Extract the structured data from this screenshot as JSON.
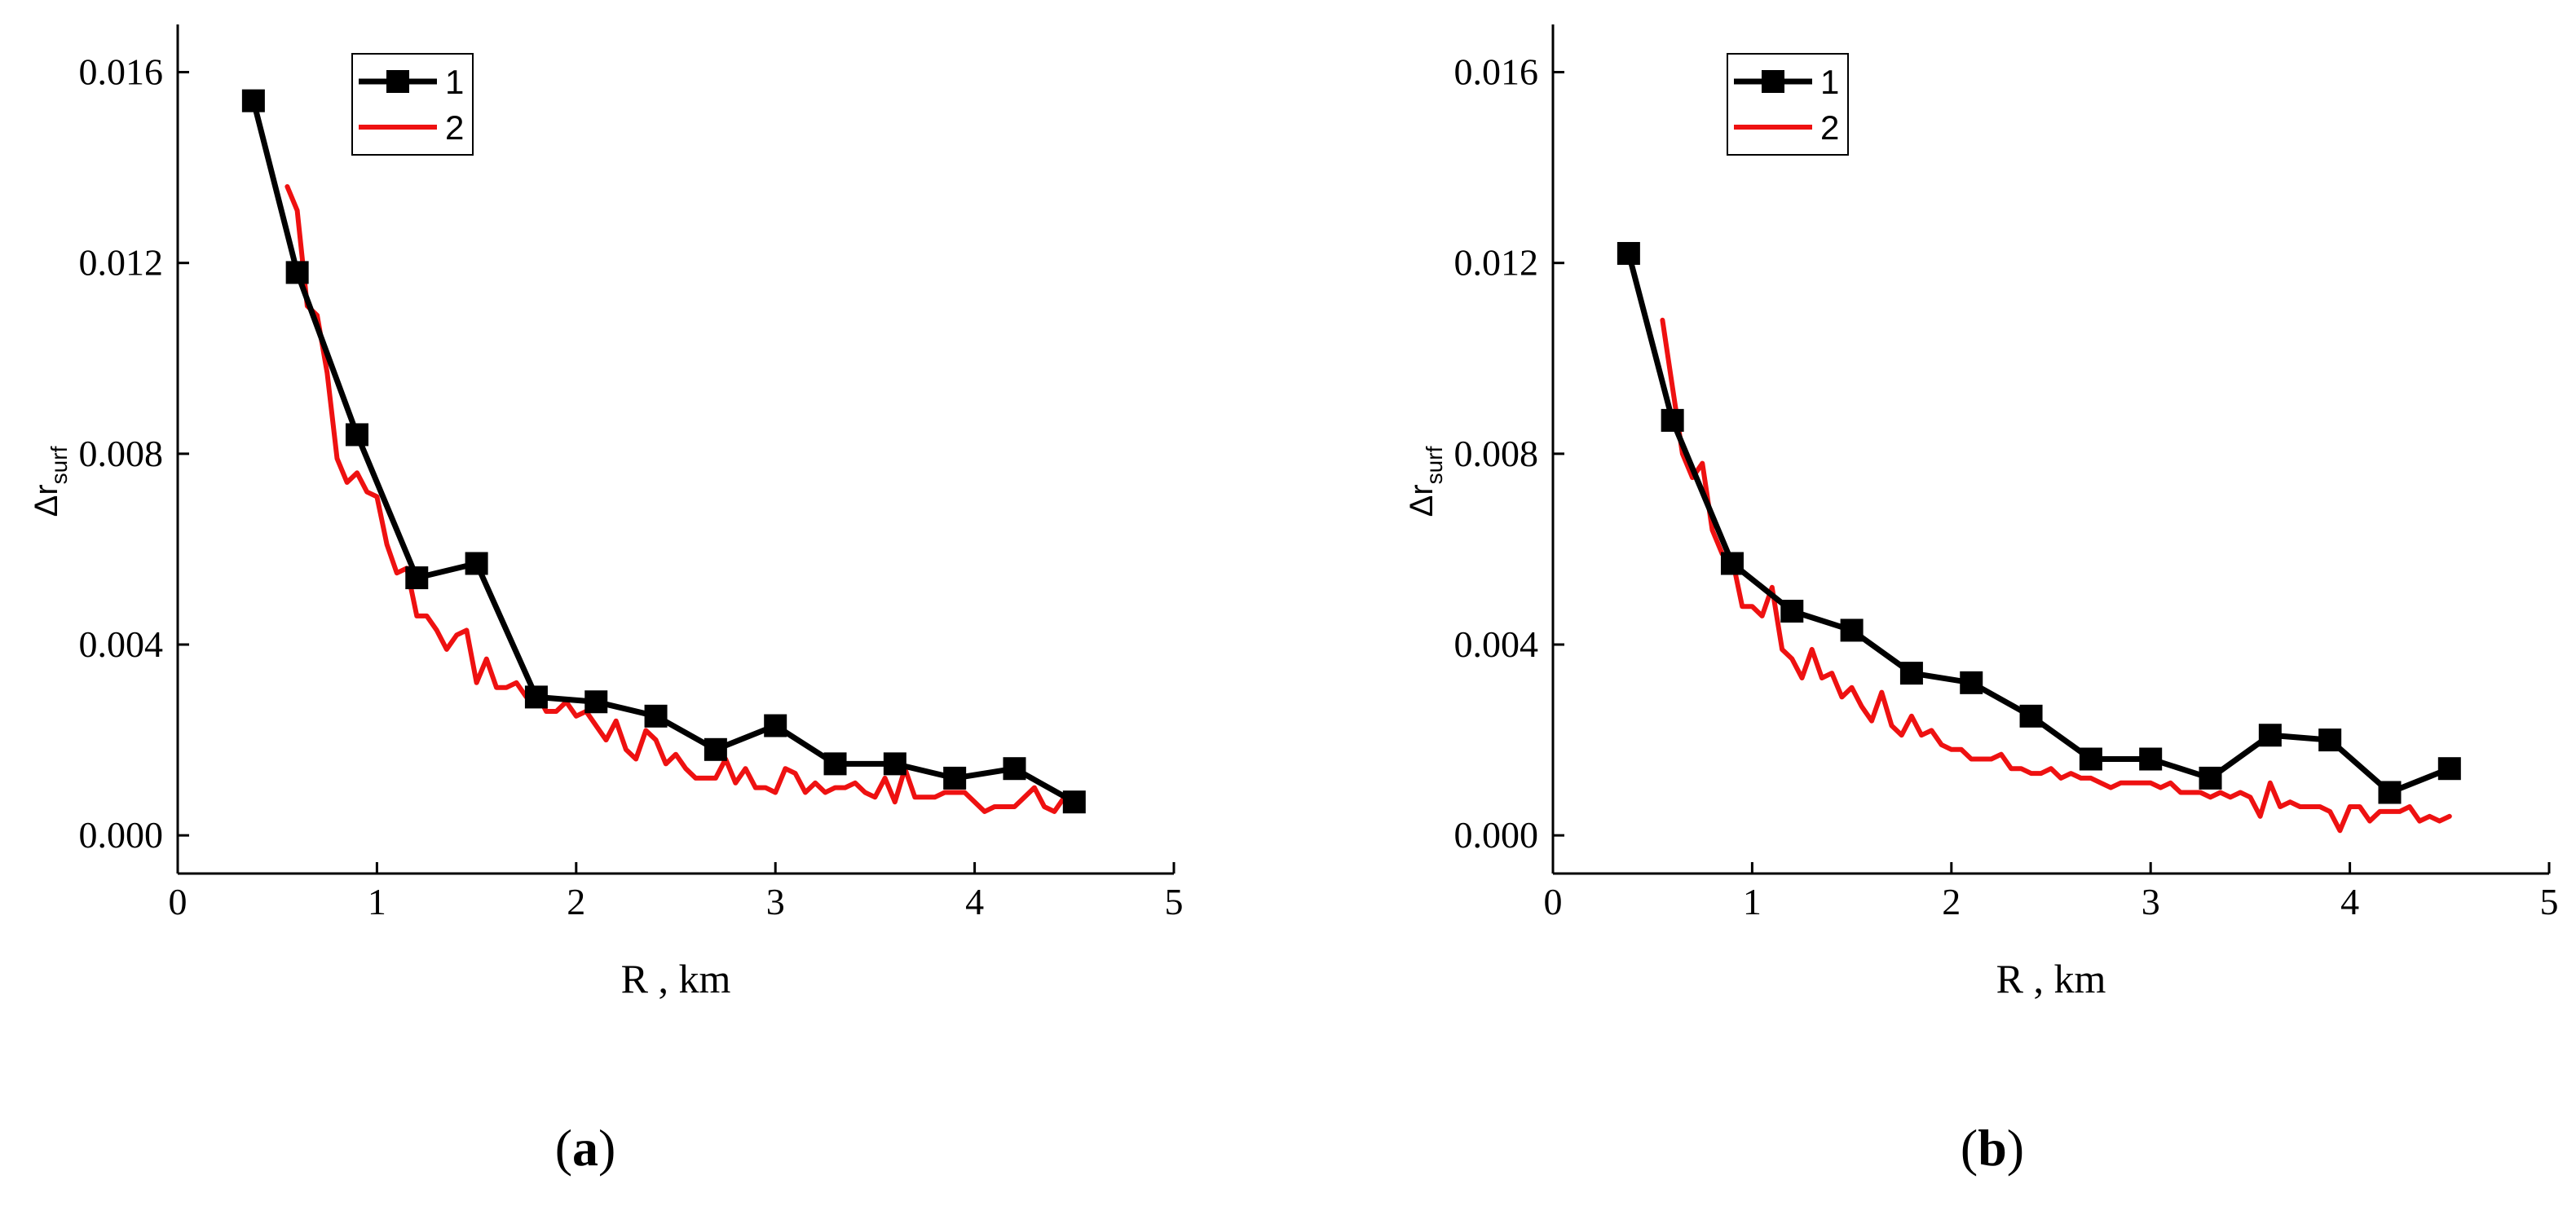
{
  "chart_data": [
    {
      "type": "line",
      "panel": "a",
      "xlabel": "R , km",
      "ylabel_main": "Δr",
      "ylabel_sub": "surf",
      "xlim": [
        0,
        5
      ],
      "ylim": [
        -0.0008,
        0.017
      ],
      "xticks": [
        0,
        1,
        2,
        3,
        4,
        5
      ],
      "xtick_labels": [
        "0",
        "1",
        "2",
        "3",
        "4",
        "5"
      ],
      "yticks": [
        0,
        0.004,
        0.008,
        0.012,
        0.016
      ],
      "ytick_labels": [
        "0.000",
        "0.004",
        "0.008",
        "0.012",
        "0.016"
      ],
      "legend": [
        "1",
        "2"
      ],
      "legend_position": "top-left",
      "panel_label": {
        "open": "(",
        "letter": "a",
        "close": ")"
      },
      "series": [
        {
          "name": "1",
          "color": "#000000",
          "marker": "square",
          "x": [
            0.38,
            0.6,
            0.9,
            1.2,
            1.5,
            1.8,
            2.1,
            2.4,
            2.7,
            3.0,
            3.3,
            3.6,
            3.9,
            4.2,
            4.5
          ],
          "y": [
            0.0154,
            0.0118,
            0.0084,
            0.0054,
            0.0057,
            0.0029,
            0.0028,
            0.0025,
            0.0018,
            0.0023,
            0.0015,
            0.0015,
            0.0012,
            0.0014,
            0.0007
          ]
        },
        {
          "name": "2",
          "color": "#ee1111",
          "marker": "none",
          "x": [
            0.55,
            0.6,
            0.65,
            0.7,
            0.75,
            0.8,
            0.85,
            0.9,
            0.95,
            1.0,
            1.05,
            1.1,
            1.15,
            1.2,
            1.25,
            1.3,
            1.35,
            1.4,
            1.45,
            1.5,
            1.55,
            1.6,
            1.65,
            1.7,
            1.75,
            1.8,
            1.85,
            1.9,
            1.95,
            2.0,
            2.05,
            2.1,
            2.15,
            2.2,
            2.25,
            2.3,
            2.35,
            2.4,
            2.45,
            2.5,
            2.55,
            2.6,
            2.65,
            2.7,
            2.75,
            2.8,
            2.85,
            2.9,
            2.95,
            3.0,
            3.05,
            3.1,
            3.15,
            3.2,
            3.25,
            3.3,
            3.35,
            3.4,
            3.45,
            3.5,
            3.55,
            3.6,
            3.65,
            3.7,
            3.75,
            3.8,
            3.85,
            3.9,
            3.95,
            4.0,
            4.05,
            4.1,
            4.15,
            4.2,
            4.25,
            4.3,
            4.35,
            4.4,
            4.45,
            4.5
          ],
          "y": [
            0.0136,
            0.0131,
            0.0111,
            0.0109,
            0.0097,
            0.0079,
            0.0074,
            0.0076,
            0.0072,
            0.0071,
            0.0061,
            0.0055,
            0.0056,
            0.0046,
            0.0046,
            0.0043,
            0.0039,
            0.0042,
            0.0043,
            0.0032,
            0.0037,
            0.0031,
            0.0031,
            0.0032,
            0.0029,
            0.003,
            0.0026,
            0.0026,
            0.0028,
            0.0025,
            0.0026,
            0.0023,
            0.002,
            0.0024,
            0.0018,
            0.0016,
            0.0022,
            0.002,
            0.0015,
            0.0017,
            0.0014,
            0.0012,
            0.0012,
            0.0012,
            0.0016,
            0.0011,
            0.0014,
            0.001,
            0.001,
            0.0009,
            0.0014,
            0.0013,
            0.0009,
            0.0011,
            0.0009,
            0.001,
            0.001,
            0.0011,
            0.0009,
            0.0008,
            0.0012,
            0.0007,
            0.0014,
            0.0008,
            0.0008,
            0.0008,
            0.0009,
            0.0009,
            0.0009,
            0.0007,
            0.0005,
            0.0006,
            0.0006,
            0.0006,
            0.0008,
            0.001,
            0.0006,
            0.0005,
            0.0008,
            0.0006
          ]
        }
      ]
    },
    {
      "type": "line",
      "panel": "b",
      "xlabel": "R , km",
      "ylabel_main": "Δr",
      "ylabel_sub": "surf",
      "xlim": [
        0,
        5
      ],
      "ylim": [
        -0.0008,
        0.017
      ],
      "xticks": [
        0,
        1,
        2,
        3,
        4,
        5
      ],
      "xtick_labels": [
        "0",
        "1",
        "2",
        "3",
        "4",
        "5"
      ],
      "yticks": [
        0,
        0.004,
        0.008,
        0.012,
        0.016
      ],
      "ytick_labels": [
        "0.000",
        "0.004",
        "0.008",
        "0.012",
        "0.016"
      ],
      "legend": [
        "1",
        "2"
      ],
      "legend_position": "top-left",
      "panel_label": {
        "open": "(",
        "letter": "b",
        "close": ")"
      },
      "series": [
        {
          "name": "1",
          "color": "#000000",
          "marker": "square",
          "x": [
            0.38,
            0.6,
            0.9,
            1.2,
            1.5,
            1.8,
            2.1,
            2.4,
            2.7,
            3.0,
            3.3,
            3.6,
            3.9,
            4.2,
            4.5
          ],
          "y": [
            0.0122,
            0.0087,
            0.0057,
            0.0047,
            0.0043,
            0.0034,
            0.0032,
            0.0025,
            0.0016,
            0.0016,
            0.0012,
            0.0021,
            0.002,
            0.0009,
            0.0014
          ]
        },
        {
          "name": "2",
          "color": "#ee1111",
          "marker": "none",
          "x": [
            0.55,
            0.6,
            0.65,
            0.7,
            0.75,
            0.8,
            0.85,
            0.9,
            0.95,
            1.0,
            1.05,
            1.1,
            1.15,
            1.2,
            1.25,
            1.3,
            1.35,
            1.4,
            1.45,
            1.5,
            1.55,
            1.6,
            1.65,
            1.7,
            1.75,
            1.8,
            1.85,
            1.9,
            1.95,
            2.0,
            2.05,
            2.1,
            2.15,
            2.2,
            2.25,
            2.3,
            2.35,
            2.4,
            2.45,
            2.5,
            2.55,
            2.6,
            2.65,
            2.7,
            2.75,
            2.8,
            2.85,
            2.9,
            2.95,
            3.0,
            3.05,
            3.1,
            3.15,
            3.2,
            3.25,
            3.3,
            3.35,
            3.4,
            3.45,
            3.5,
            3.55,
            3.6,
            3.65,
            3.7,
            3.75,
            3.8,
            3.85,
            3.9,
            3.95,
            4.0,
            4.05,
            4.1,
            4.15,
            4.2,
            4.25,
            4.3,
            4.35,
            4.4,
            4.45,
            4.5
          ],
          "y": [
            0.0108,
            0.0094,
            0.008,
            0.0075,
            0.0078,
            0.0064,
            0.0059,
            0.0058,
            0.0048,
            0.0048,
            0.0046,
            0.0052,
            0.0039,
            0.0037,
            0.0033,
            0.0039,
            0.0033,
            0.0034,
            0.0029,
            0.0031,
            0.0027,
            0.0024,
            0.003,
            0.0023,
            0.0021,
            0.0025,
            0.0021,
            0.0022,
            0.0019,
            0.0018,
            0.0018,
            0.0016,
            0.0016,
            0.0016,
            0.0017,
            0.0014,
            0.0014,
            0.0013,
            0.0013,
            0.0014,
            0.0012,
            0.0013,
            0.0012,
            0.0012,
            0.0011,
            0.001,
            0.0011,
            0.0011,
            0.0011,
            0.0011,
            0.001,
            0.0011,
            0.0009,
            0.0009,
            0.0009,
            0.0008,
            0.0009,
            0.0008,
            0.0009,
            0.0008,
            0.0004,
            0.0011,
            0.0006,
            0.0007,
            0.0006,
            0.0006,
            0.0006,
            0.0005,
            0.0001,
            0.0006,
            0.0006,
            0.0003,
            0.0005,
            0.0005,
            0.0005,
            0.0006,
            0.0003,
            0.0004,
            0.0003,
            0.0004
          ]
        }
      ]
    }
  ]
}
